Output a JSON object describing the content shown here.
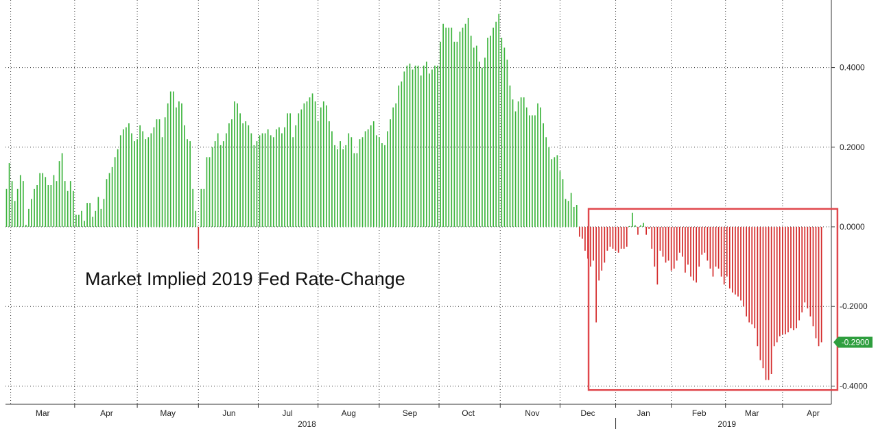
{
  "chart_data": {
    "type": "bar",
    "title": "Market Implied 2019 Fed Rate-Change",
    "xlabel": "",
    "ylabel": "",
    "ylim": [
      -0.455,
      0.57
    ],
    "yticks": [
      "0.4000",
      "0.2000",
      "0.0000",
      "-0.2000",
      "-0.4000"
    ],
    "ytick_values": [
      0.4,
      0.2,
      0.0,
      -0.2,
      -0.4
    ],
    "grid": true,
    "last_value": {
      "label": "-0.2900",
      "value": -0.29
    },
    "months": [
      {
        "label": "Mar",
        "index": 13
      },
      {
        "label": "Apr",
        "index": 36
      },
      {
        "label": "May",
        "index": 58
      },
      {
        "label": "Jun",
        "index": 80
      },
      {
        "label": "Jul",
        "index": 101
      },
      {
        "label": "Aug",
        "index": 123
      },
      {
        "label": "Sep",
        "index": 145
      },
      {
        "label": "Oct",
        "index": 166
      },
      {
        "label": "Nov",
        "index": 189
      },
      {
        "label": "Dec",
        "index": 209
      },
      {
        "label": "Jan",
        "index": 229
      },
      {
        "label": "Feb",
        "index": 249
      },
      {
        "label": "Mar",
        "index": 268
      },
      {
        "label": "Apr",
        "index": 290
      }
    ],
    "years": [
      {
        "label": "2018",
        "index": 108
      },
      {
        "label": "2019",
        "index": 259
      }
    ],
    "highlight": {
      "shape": "rectangle",
      "color": "#e0474c",
      "from_index": 210,
      "to_index": 298,
      "y_top": 0.045,
      "y_bottom": -0.41
    },
    "positive_color": "#3cb43c",
    "negative_color": "#d42a2a",
    "values": [
      0.095,
      0.16,
      0.115,
      0.065,
      0.095,
      0.13,
      0.115,
      0.005,
      0.045,
      0.07,
      0.095,
      0.105,
      0.135,
      0.135,
      0.125,
      0.105,
      0.105,
      0.13,
      0.115,
      0.165,
      0.185,
      0.115,
      0.09,
      0.115,
      0.09,
      0.03,
      0.03,
      0.04,
      0.015,
      0.06,
      0.06,
      0.025,
      0.04,
      0.075,
      0.045,
      0.07,
      0.12,
      0.135,
      0.15,
      0.175,
      0.195,
      0.23,
      0.245,
      0.25,
      0.26,
      0.235,
      0.215,
      0.22,
      0.255,
      0.24,
      0.22,
      0.225,
      0.235,
      0.25,
      0.27,
      0.27,
      0.225,
      0.275,
      0.31,
      0.34,
      0.34,
      0.3,
      0.315,
      0.31,
      0.255,
      0.22,
      0.215,
      0.095,
      0.04,
      -0.055,
      0.095,
      0.095,
      0.175,
      0.175,
      0.2,
      0.215,
      0.235,
      0.205,
      0.215,
      0.235,
      0.26,
      0.27,
      0.315,
      0.31,
      0.285,
      0.26,
      0.265,
      0.255,
      0.235,
      0.205,
      0.215,
      0.23,
      0.235,
      0.235,
      0.245,
      0.23,
      0.225,
      0.245,
      0.25,
      0.235,
      0.25,
      0.285,
      0.285,
      0.225,
      0.255,
      0.285,
      0.295,
      0.31,
      0.315,
      0.325,
      0.335,
      0.315,
      0.265,
      0.3,
      0.315,
      0.305,
      0.265,
      0.24,
      0.205,
      0.195,
      0.215,
      0.195,
      0.205,
      0.235,
      0.225,
      0.185,
      0.185,
      0.22,
      0.225,
      0.24,
      0.245,
      0.255,
      0.265,
      0.23,
      0.225,
      0.21,
      0.205,
      0.24,
      0.27,
      0.3,
      0.31,
      0.355,
      0.365,
      0.39,
      0.405,
      0.41,
      0.395,
      0.405,
      0.405,
      0.38,
      0.405,
      0.415,
      0.385,
      0.395,
      0.405,
      0.405,
      0.465,
      0.51,
      0.5,
      0.5,
      0.5,
      0.465,
      0.465,
      0.49,
      0.5,
      0.51,
      0.525,
      0.48,
      0.45,
      0.455,
      0.415,
      0.4,
      0.425,
      0.475,
      0.48,
      0.5,
      0.515,
      0.535,
      0.475,
      0.45,
      0.42,
      0.355,
      0.32,
      0.29,
      0.315,
      0.325,
      0.325,
      0.3,
      0.28,
      0.28,
      0.28,
      0.31,
      0.3,
      0.26,
      0.225,
      0.2,
      0.17,
      0.175,
      0.18,
      0.14,
      0.12,
      0.07,
      0.065,
      0.085,
      0.05,
      0.055,
      -0.025,
      -0.03,
      -0.06,
      -0.08,
      -0.1,
      -0.085,
      -0.24,
      -0.135,
      -0.11,
      -0.09,
      -0.06,
      -0.05,
      -0.055,
      -0.06,
      -0.065,
      -0.055,
      -0.055,
      -0.05,
      0.002,
      0.035,
      0.004,
      -0.02,
      0.004,
      0.01,
      -0.02,
      -0.005,
      -0.055,
      -0.1,
      -0.145,
      -0.06,
      -0.075,
      -0.09,
      -0.085,
      -0.11,
      -0.105,
      -0.085,
      -0.065,
      -0.075,
      -0.115,
      -0.095,
      -0.125,
      -0.135,
      -0.14,
      -0.1,
      -0.07,
      -0.065,
      -0.085,
      -0.105,
      -0.125,
      -0.1,
      -0.105,
      -0.125,
      -0.145,
      -0.125,
      -0.155,
      -0.165,
      -0.17,
      -0.175,
      -0.185,
      -0.2,
      -0.225,
      -0.24,
      -0.245,
      -0.255,
      -0.3,
      -0.335,
      -0.355,
      -0.385,
      -0.385,
      -0.37,
      -0.3,
      -0.29,
      -0.275,
      -0.27,
      -0.27,
      -0.265,
      -0.255,
      -0.26,
      -0.255,
      -0.235,
      -0.215,
      -0.19,
      -0.205,
      -0.225,
      -0.25,
      -0.28,
      -0.3,
      -0.29
    ]
  }
}
